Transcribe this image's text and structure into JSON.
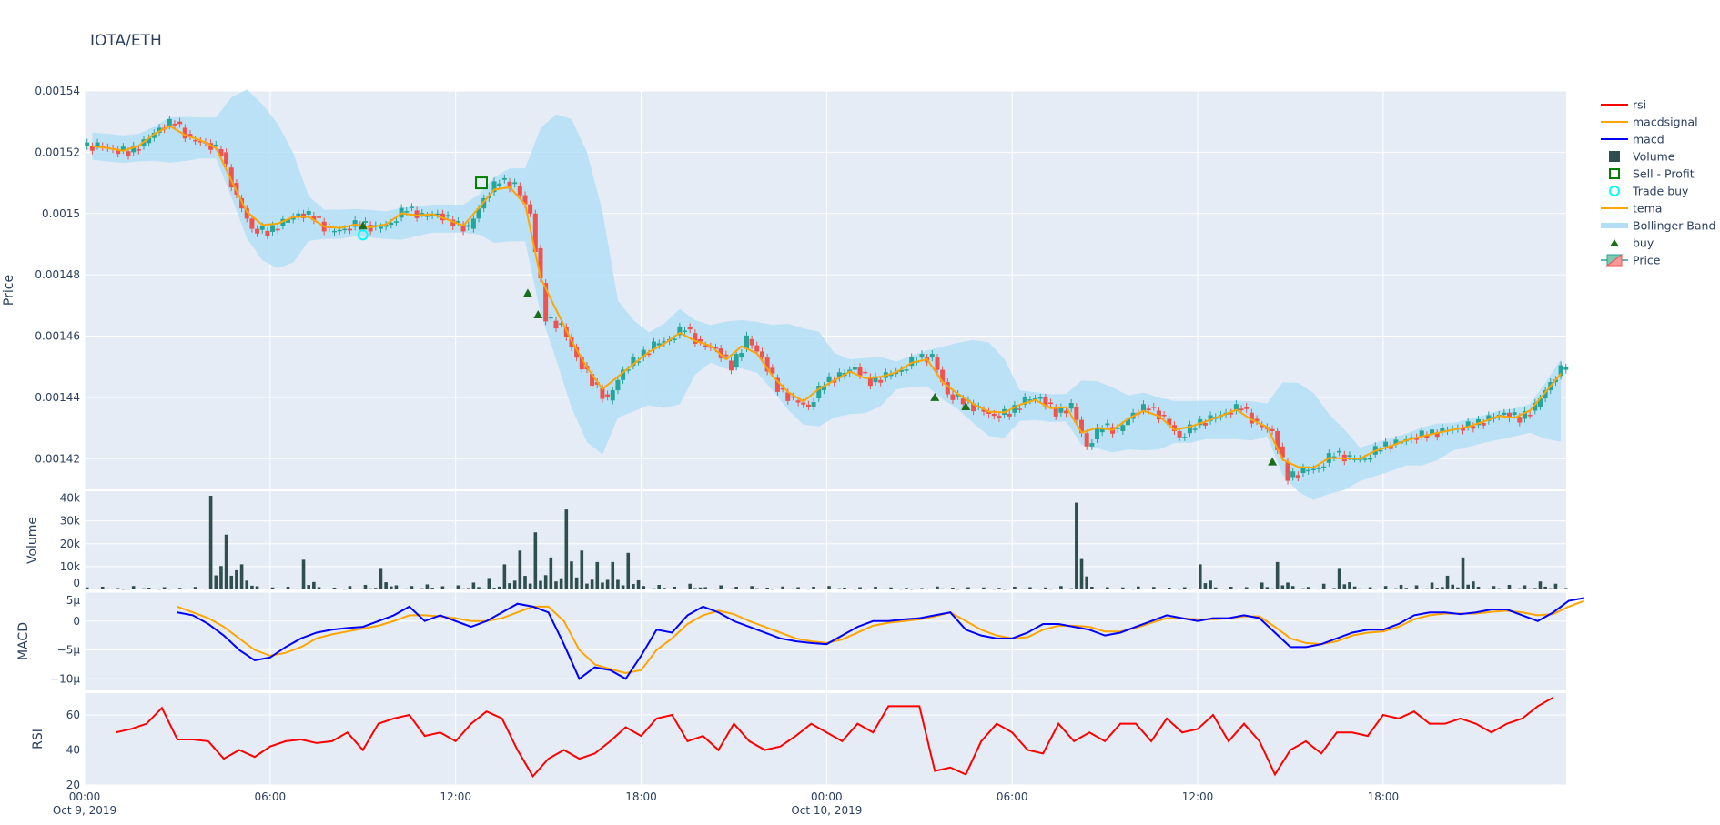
{
  "title": "IOTA/ETH",
  "colors": {
    "plot_bg": "#e5ecf6",
    "grid": "#ffffff",
    "increasing": "#26a69a",
    "decreasing": "#ef5350",
    "band": "#b3dff5",
    "tema": "#ffa500",
    "macd": "#0000ff",
    "macdsignal": "#ffa500",
    "rsi": "#ff0000",
    "volume": "#2f4f4f",
    "buy": "#1b6e1b",
    "sell": "#008000",
    "trade_buy": "#00ffff"
  },
  "legend": [
    {
      "label": "rsi",
      "symbol": "line",
      "color": "#ff0000"
    },
    {
      "label": "macdsignal",
      "symbol": "line",
      "color": "#ffa500"
    },
    {
      "label": "macd",
      "symbol": "line",
      "color": "#0000ff"
    },
    {
      "label": "Volume",
      "symbol": "square",
      "color": "#2f4f4f"
    },
    {
      "label": "Sell - Profit",
      "symbol": "square-open",
      "color": "#008000"
    },
    {
      "label": "Trade buy",
      "symbol": "circle-open",
      "color": "#00ffff"
    },
    {
      "label": "tema",
      "symbol": "line",
      "color": "#ffa500"
    },
    {
      "label": "Bollinger Band",
      "symbol": "band",
      "color": "#b3dff5"
    },
    {
      "label": "buy",
      "symbol": "triangle-up",
      "color": "#1b6e1b"
    },
    {
      "label": "Price",
      "symbol": "candle",
      "color": "#26a69a"
    }
  ],
  "x_ticks": [
    {
      "line1": "00:00",
      "line2": "Oct 9, 2019",
      "hour": 0
    },
    {
      "line1": "06:00",
      "line2": "",
      "hour": 6
    },
    {
      "line1": "12:00",
      "line2": "",
      "hour": 12
    },
    {
      "line1": "18:00",
      "line2": "",
      "hour": 18
    },
    {
      "line1": "00:00",
      "line2": "Oct 10, 2019",
      "hour": 24
    },
    {
      "line1": "06:00",
      "line2": "",
      "hour": 30
    },
    {
      "line1": "12:00",
      "line2": "",
      "hour": 36
    },
    {
      "line1": "18:00",
      "line2": "",
      "hour": 42
    }
  ],
  "chart_data": [
    {
      "type": "candlestick",
      "ylabel": "Price",
      "ylim": [
        0.00141,
        0.00154
      ],
      "y_ticks": [
        "0.00142",
        "0.00144",
        "0.00146",
        "0.00148",
        "0.0015",
        "0.00152",
        "0.00154"
      ],
      "x_start": "2019-10-09 00:00",
      "x_step_minutes": 30,
      "close": [
        0.001522,
        0.001521,
        0.00152,
        0.001523,
        0.001528,
        0.00153,
        0.001524,
        0.001523,
        0.00152,
        0.001505,
        0.001495,
        0.001494,
        0.001497,
        0.0015,
        0.001499,
        0.001494,
        0.001495,
        0.001497,
        0.001495,
        0.001497,
        0.001502,
        0.001499,
        0.0015,
        0.001497,
        0.001495,
        0.001505,
        0.001511,
        0.001509,
        0.0015,
        0.001466,
        0.001463,
        0.001453,
        0.001445,
        0.001439,
        0.001449,
        0.001453,
        0.001457,
        0.001459,
        0.001463,
        0.001457,
        0.001456,
        0.00145,
        0.001459,
        0.001453,
        0.001443,
        0.001439,
        0.001437,
        0.001445,
        0.001447,
        0.00145,
        0.001445,
        0.001447,
        0.001449,
        0.001453,
        0.001453,
        0.001441,
        0.001439,
        0.001436,
        0.001434,
        0.001435,
        0.001439,
        0.00144,
        0.001435,
        0.001437,
        0.001424,
        0.001431,
        0.001429,
        0.001435,
        0.001437,
        0.001433,
        0.001427,
        0.001431,
        0.001433,
        0.001435,
        0.001437,
        0.001431,
        0.001429,
        0.001414,
        0.001416,
        0.001417,
        0.001422,
        0.00142,
        0.00142,
        0.001424,
        0.001425,
        0.001427,
        0.001428,
        0.001429,
        0.00143,
        0.001431,
        0.001433,
        0.001435,
        0.001433,
        0.001437,
        0.001445,
        0.001451
      ],
      "buy": [
        {
          "time": "2019-10-09 09:00",
          "price": 0.001496
        },
        {
          "time": "2019-10-09 14:20",
          "price": 0.001474
        },
        {
          "time": "2019-10-09 14:40",
          "price": 0.001467
        },
        {
          "time": "2019-10-10 03:30",
          "price": 0.00144
        },
        {
          "time": "2019-10-10 04:30",
          "price": 0.001437
        },
        {
          "time": "2019-10-10 14:25",
          "price": 0.001419
        }
      ],
      "sell_profit": [
        {
          "time": "2019-10-09 12:50",
          "price": 0.00151
        }
      ],
      "trade_buy": [
        {
          "time": "2019-10-09 09:00",
          "price": 0.001493
        }
      ]
    },
    {
      "type": "bar",
      "ylabel": "Volume",
      "ylim": [
        0,
        43000
      ],
      "y_ticks": [
        {
          "v": 0,
          "label": "0"
        },
        {
          "v": 10000,
          "label": "10k"
        },
        {
          "v": 20000,
          "label": "20k"
        },
        {
          "v": 30000,
          "label": "30k"
        },
        {
          "v": 40000,
          "label": "40k"
        }
      ],
      "x_start": "2019-10-09 00:00",
      "x_step_minutes": 30,
      "values": [
        900,
        1200,
        600,
        1500,
        800,
        1000,
        700,
        1100,
        41000,
        24000,
        11000,
        1400,
        900,
        1200,
        13000,
        1000,
        800,
        1500,
        2000,
        9000,
        1800,
        1500,
        2200,
        1400,
        1800,
        3000,
        5000,
        11000,
        17000,
        25000,
        14000,
        35000,
        17000,
        12000,
        12000,
        16000,
        1500,
        2000,
        1200,
        2500,
        1000,
        1800,
        1200,
        1500,
        800,
        1300,
        1000,
        1200,
        1500,
        800,
        1000,
        1200,
        900,
        700,
        600,
        1300,
        800,
        1000,
        900,
        700,
        1200,
        1000,
        900,
        1500,
        38000,
        1200,
        1000,
        900,
        1300,
        1100,
        800,
        1000,
        11000,
        900,
        1200,
        1000,
        3000,
        12000,
        1500,
        1100,
        2500,
        9000,
        1300,
        1000,
        1500,
        2000,
        1800,
        3000,
        6000,
        14000,
        1200,
        1500,
        2000,
        1800,
        3500,
        2500
      ]
    },
    {
      "type": "line",
      "ylabel": "MACD",
      "ylim": [
        -12,
        5
      ],
      "unit": "μ",
      "y_ticks": [
        {
          "v": 5,
          "label": "5μ"
        },
        {
          "v": 0,
          "label": "0"
        },
        {
          "v": -5,
          "label": "−5μ"
        },
        {
          "v": -10,
          "label": "−10μ"
        }
      ],
      "x_start": "2019-10-09 03:00",
      "x_step_minutes": 30,
      "series": [
        {
          "name": "macd",
          "values": [
            1.5,
            1,
            -0.5,
            -2.5,
            -5,
            -6.8,
            -6.3,
            -4.5,
            -3,
            -2,
            -1.5,
            -1.2,
            -1,
            0,
            1,
            2.5,
            0,
            1,
            0,
            -1,
            0,
            1.5,
            3,
            2.5,
            1.5,
            -4,
            -10,
            -8,
            -8.5,
            -10,
            -6,
            -1.5,
            -2,
            1,
            2.5,
            1.5,
            0,
            -1,
            -2,
            -3,
            -3.5,
            -3.8,
            -4,
            -2.5,
            -1,
            0,
            0,
            0.3,
            0.5,
            1,
            1.5,
            -1.5,
            -2.5,
            -3,
            -3,
            -2,
            -0.5,
            -0.5,
            -1,
            -1.5,
            -2.5,
            -2,
            -1,
            0,
            1,
            0.5,
            0,
            0.5,
            0.5,
            1,
            0.5,
            -2,
            -4.5,
            -4.5,
            -4,
            -3,
            -2,
            -1.5,
            -1.5,
            -0.5,
            1,
            1.5,
            1.5,
            1.2,
            1.5,
            2,
            2,
            1,
            0,
            1.5,
            3.5,
            4
          ]
        },
        {
          "name": "macdsignal",
          "values": [
            2.5,
            1.5,
            0.5,
            -1,
            -3,
            -5,
            -6,
            -5.5,
            -4.5,
            -3,
            -2.3,
            -1.8,
            -1.3,
            -0.8,
            0,
            1,
            1,
            0.8,
            0.5,
            0,
            0,
            0.5,
            1.5,
            2.5,
            2.5,
            0,
            -5,
            -7.5,
            -8.3,
            -9,
            -8.5,
            -5,
            -3,
            -0.5,
            1,
            1.8,
            1.2,
            0,
            -1,
            -2,
            -3,
            -3.5,
            -3.8,
            -3.2,
            -2,
            -0.8,
            -0.3,
            0,
            0.3,
            0.8,
            1.5,
            0,
            -1.5,
            -2.5,
            -3,
            -2.8,
            -1.5,
            -0.8,
            -0.8,
            -1,
            -1.8,
            -1.8,
            -1.2,
            -0.3,
            0.5,
            0.5,
            0.3,
            0.3,
            0.5,
            0.8,
            0.8,
            -1,
            -3,
            -3.8,
            -4,
            -3.5,
            -2.5,
            -2,
            -1.8,
            -1,
            0.3,
            1,
            1.3,
            1.3,
            1.3,
            1.6,
            1.8,
            1.5,
            1,
            1.2,
            2.5,
            3.5
          ]
        }
      ]
    },
    {
      "type": "line",
      "ylabel": "RSI",
      "ylim": [
        20,
        72.5
      ],
      "y_ticks": [
        {
          "v": 20,
          "label": "20"
        },
        {
          "v": 40,
          "label": "40"
        },
        {
          "v": 60,
          "label": "60"
        }
      ],
      "x_start": "2019-10-09 01:00",
      "x_step_minutes": 30,
      "series": [
        {
          "name": "rsi",
          "values": [
            50,
            52,
            55,
            64,
            46,
            46,
            45,
            35,
            40,
            36,
            42,
            45,
            46,
            44,
            45,
            50,
            40,
            55,
            58,
            60,
            48,
            50,
            45,
            55,
            62,
            58,
            40,
            25,
            35,
            40,
            35,
            38,
            45,
            53,
            48,
            58,
            60,
            45,
            48,
            40,
            55,
            45,
            40,
            42,
            48,
            55,
            50,
            45,
            55,
            50,
            65,
            65,
            65,
            28,
            30,
            26,
            45,
            55,
            50,
            40,
            38,
            55,
            45,
            50,
            45,
            55,
            55,
            45,
            58,
            50,
            52,
            60,
            45,
            55,
            45,
            26,
            40,
            45,
            38,
            50,
            50,
            48,
            60,
            58,
            62,
            55,
            55,
            58,
            55,
            50,
            55,
            58,
            65,
            70
          ]
        }
      ]
    }
  ]
}
